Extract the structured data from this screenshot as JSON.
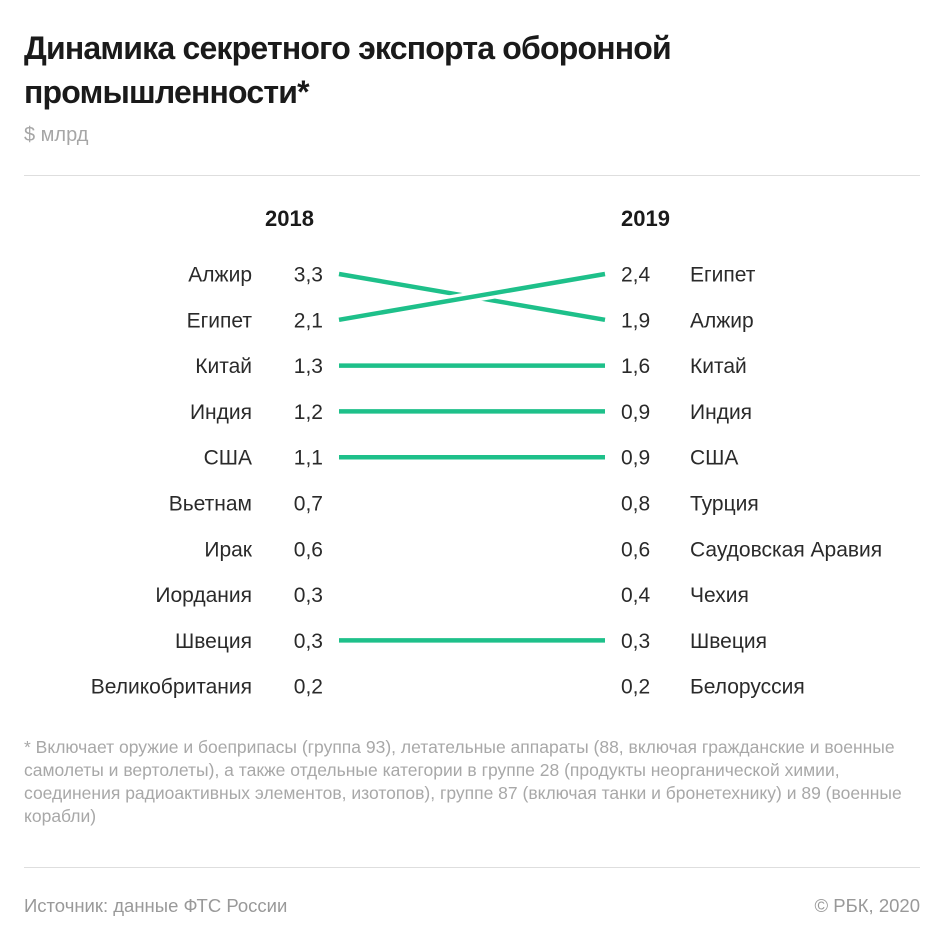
{
  "header": {
    "title": "Динамика секретного экспорта оборонной промышленности*",
    "subtitle": "$ млрд"
  },
  "chart_data": {
    "type": "slope",
    "title": "Динамика секретного экспорта оборонной промышленности*",
    "unit": "$ млрд",
    "columns": [
      "2018",
      "2019"
    ],
    "line_color": "#1ec08a",
    "left": [
      {
        "country": "Алжир",
        "value": 3.3,
        "label": "3,3"
      },
      {
        "country": "Египет",
        "value": 2.1,
        "label": "2,1"
      },
      {
        "country": "Китай",
        "value": 1.3,
        "label": "1,3"
      },
      {
        "country": "Индия",
        "value": 1.2,
        "label": "1,2"
      },
      {
        "country": "США",
        "value": 1.1,
        "label": "1,1"
      },
      {
        "country": "Вьетнам",
        "value": 0.7,
        "label": "0,7"
      },
      {
        "country": "Ирак",
        "value": 0.6,
        "label": "0,6"
      },
      {
        "country": "Иордания",
        "value": 0.3,
        "label": "0,3"
      },
      {
        "country": "Швеция",
        "value": 0.3,
        "label": "0,3"
      },
      {
        "country": "Великобритания",
        "value": 0.2,
        "label": "0,2"
      }
    ],
    "right": [
      {
        "country": "Египет",
        "value": 2.4,
        "label": "2,4"
      },
      {
        "country": "Алжир",
        "value": 1.9,
        "label": "1,9"
      },
      {
        "country": "Китай",
        "value": 1.6,
        "label": "1,6"
      },
      {
        "country": "Индия",
        "value": 0.9,
        "label": "0,9"
      },
      {
        "country": "США",
        "value": 0.9,
        "label": "0,9"
      },
      {
        "country": "Турция",
        "value": 0.8,
        "label": "0,8"
      },
      {
        "country": "Саудовская Аравия",
        "value": 0.6,
        "label": "0,6"
      },
      {
        "country": "Чехия",
        "value": 0.4,
        "label": "0,4"
      },
      {
        "country": "Швеция",
        "value": 0.3,
        "label": "0,3"
      },
      {
        "country": "Белоруссия",
        "value": 0.2,
        "label": "0,2"
      }
    ],
    "connections": [
      {
        "country": "Алжир",
        "from_rank": 1,
        "to_rank": 2
      },
      {
        "country": "Египет",
        "from_rank": 2,
        "to_rank": 1
      },
      {
        "country": "Китай",
        "from_rank": 3,
        "to_rank": 3
      },
      {
        "country": "Индия",
        "from_rank": 4,
        "to_rank": 4
      },
      {
        "country": "США",
        "from_rank": 5,
        "to_rank": 5
      },
      {
        "country": "Швеция",
        "from_rank": 9,
        "to_rank": 9
      }
    ]
  },
  "footnote": "* Включает оружие и боеприпасы (группа 93), летательные аппараты (88, включая гражданские и военные самолеты и вертолеты), а также отдельные категории в группе 28 (продукты неорганической химии, соединения радиоактивных элементов, изотопов), группе 87 (включая танки и бронетехнику) и 89 (военные корабли)",
  "footer": {
    "source": "Источник: данные ФТС России",
    "copyright": "© РБК, 2020"
  }
}
